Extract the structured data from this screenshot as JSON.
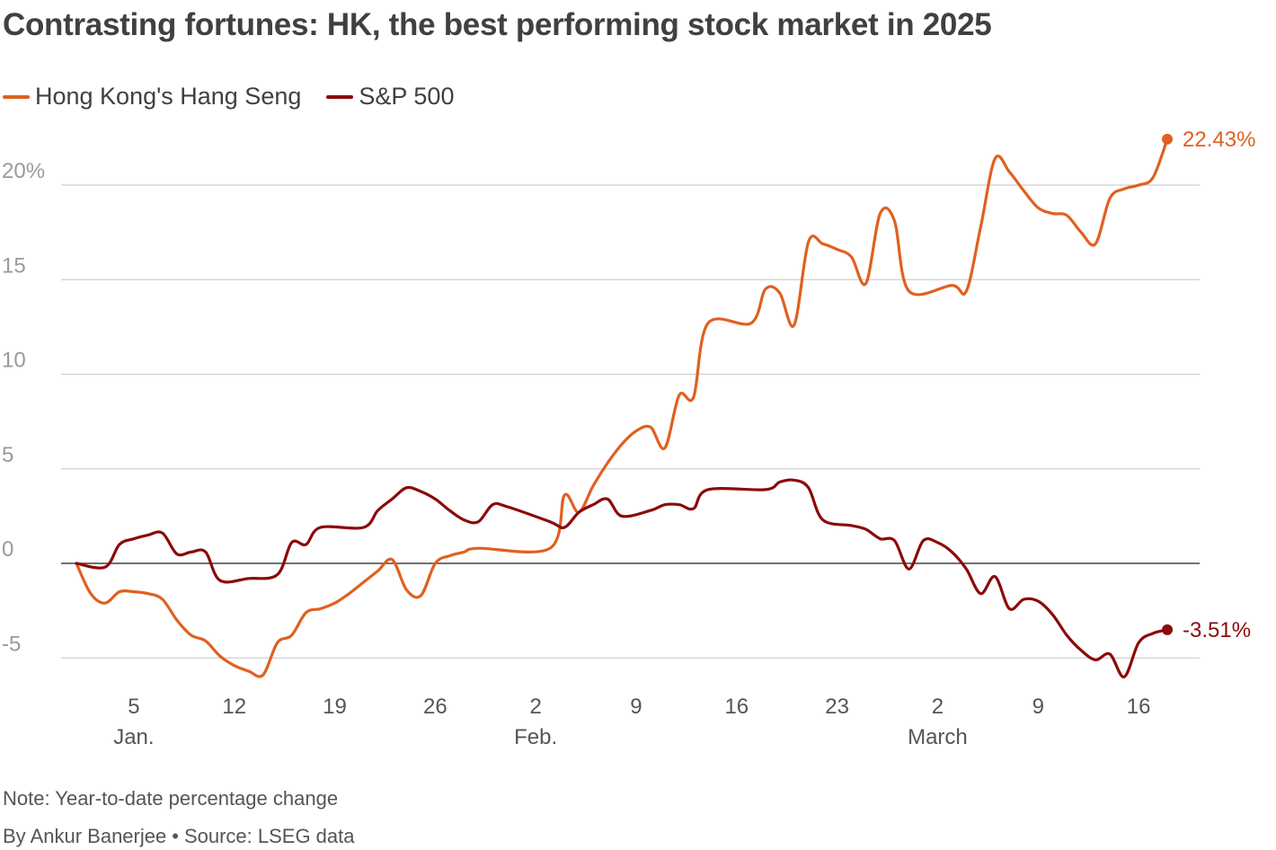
{
  "title": "Contrasting fortunes: HK, the best performing stock market in 2025",
  "note": "Note: Year-to-date percentage change",
  "byline": "By Ankur Banerjee",
  "separator": "•",
  "source": "Source: LSEG data",
  "chart_data": {
    "type": "line",
    "x_unit": "date (2025)",
    "x_range": [
      "2025-01-01",
      "2025-03-19"
    ],
    "ylim": [
      -6.5,
      22.5
    ],
    "grid": true,
    "legend_placement": "top-left",
    "y_ticks": [
      {
        "value": 20,
        "label": "20%"
      },
      {
        "value": 15,
        "label": "15"
      },
      {
        "value": 10,
        "label": "10"
      },
      {
        "value": 5,
        "label": "5"
      },
      {
        "value": 0,
        "label": "0"
      },
      {
        "value": -5,
        "label": "-5"
      }
    ],
    "x_ticks": [
      {
        "date": "2025-01-05",
        "label": "5",
        "month": "Jan."
      },
      {
        "date": "2025-01-12",
        "label": "12"
      },
      {
        "date": "2025-01-19",
        "label": "19"
      },
      {
        "date": "2025-01-26",
        "label": "26"
      },
      {
        "date": "2025-02-02",
        "label": "2",
        "month": "Feb."
      },
      {
        "date": "2025-02-09",
        "label": "9"
      },
      {
        "date": "2025-02-16",
        "label": "16"
      },
      {
        "date": "2025-02-23",
        "label": "23"
      },
      {
        "date": "2025-03-02",
        "label": "2",
        "month": "March"
      },
      {
        "date": "2025-03-09",
        "label": "9"
      },
      {
        "date": "2025-03-16",
        "label": "16"
      }
    ],
    "series": [
      {
        "name": "Hong Kong's Hang Seng",
        "color": "#e06020",
        "end_label": "22.43%",
        "points": [
          [
            "2025-01-01",
            0.0
          ],
          [
            "2025-01-02",
            -1.6
          ],
          [
            "2025-01-03",
            -2.1
          ],
          [
            "2025-01-04",
            -1.5
          ],
          [
            "2025-01-05",
            -1.5
          ],
          [
            "2025-01-06",
            -1.6
          ],
          [
            "2025-01-07",
            -1.9
          ],
          [
            "2025-01-08",
            -3.0
          ],
          [
            "2025-01-09",
            -3.8
          ],
          [
            "2025-01-10",
            -4.1
          ],
          [
            "2025-01-11",
            -4.9
          ],
          [
            "2025-01-12",
            -5.4
          ],
          [
            "2025-01-13",
            -5.7
          ],
          [
            "2025-01-14",
            -5.9
          ],
          [
            "2025-01-15",
            -4.2
          ],
          [
            "2025-01-16",
            -3.8
          ],
          [
            "2025-01-17",
            -2.6
          ],
          [
            "2025-01-18",
            -2.4
          ],
          [
            "2025-01-19",
            -2.1
          ],
          [
            "2025-01-20",
            -1.6
          ],
          [
            "2025-01-21",
            -1.0
          ],
          [
            "2025-01-22",
            -0.4
          ],
          [
            "2025-01-23",
            0.2
          ],
          [
            "2025-01-24",
            -1.4
          ],
          [
            "2025-01-25",
            -1.7
          ],
          [
            "2025-01-26",
            0.0
          ],
          [
            "2025-01-27",
            0.4
          ],
          [
            "2025-01-28",
            0.6
          ],
          [
            "2025-01-29",
            0.8
          ],
          [
            "2025-02-03",
            0.8
          ],
          [
            "2025-02-04",
            3.6
          ],
          [
            "2025-02-05",
            2.7
          ],
          [
            "2025-02-06",
            4.1
          ],
          [
            "2025-02-07",
            5.3
          ],
          [
            "2025-02-08",
            6.3
          ],
          [
            "2025-02-09",
            7.0
          ],
          [
            "2025-02-10",
            7.2
          ],
          [
            "2025-02-11",
            6.1
          ],
          [
            "2025-02-12",
            8.9
          ],
          [
            "2025-02-13",
            8.8
          ],
          [
            "2025-02-14",
            12.7
          ],
          [
            "2025-02-17",
            12.7
          ],
          [
            "2025-02-18",
            14.5
          ],
          [
            "2025-02-19",
            14.3
          ],
          [
            "2025-02-20",
            12.6
          ],
          [
            "2025-02-21",
            17.0
          ],
          [
            "2025-02-22",
            16.9
          ],
          [
            "2025-02-23",
            16.6
          ],
          [
            "2025-02-24",
            16.2
          ],
          [
            "2025-02-25",
            14.8
          ],
          [
            "2025-02-26",
            18.5
          ],
          [
            "2025-02-27",
            18.1
          ],
          [
            "2025-02-28",
            14.4
          ],
          [
            "2025-03-03",
            14.7
          ],
          [
            "2025-03-04",
            14.4
          ],
          [
            "2025-03-05",
            17.8
          ],
          [
            "2025-03-06",
            21.4
          ],
          [
            "2025-03-07",
            20.7
          ],
          [
            "2025-03-08",
            19.7
          ],
          [
            "2025-03-09",
            18.8
          ],
          [
            "2025-03-10",
            18.5
          ],
          [
            "2025-03-11",
            18.4
          ],
          [
            "2025-03-12",
            17.5
          ],
          [
            "2025-03-13",
            16.9
          ],
          [
            "2025-03-14",
            19.3
          ],
          [
            "2025-03-15",
            19.8
          ],
          [
            "2025-03-16",
            20.0
          ],
          [
            "2025-03-17",
            20.4
          ],
          [
            "2025-03-18",
            22.43
          ]
        ]
      },
      {
        "name": "S&P 500",
        "color": "#8b0a0a",
        "end_label": "-3.51%",
        "points": [
          [
            "2025-01-01",
            0.0
          ],
          [
            "2025-01-03",
            -0.2
          ],
          [
            "2025-01-04",
            1.0
          ],
          [
            "2025-01-05",
            1.3
          ],
          [
            "2025-01-06",
            1.5
          ],
          [
            "2025-01-07",
            1.6
          ],
          [
            "2025-01-08",
            0.5
          ],
          [
            "2025-01-09",
            0.6
          ],
          [
            "2025-01-10",
            0.6
          ],
          [
            "2025-01-11",
            -0.9
          ],
          [
            "2025-01-13",
            -0.8
          ],
          [
            "2025-01-15",
            -0.6
          ],
          [
            "2025-01-16",
            1.1
          ],
          [
            "2025-01-17",
            1.0
          ],
          [
            "2025-01-18",
            1.9
          ],
          [
            "2025-01-21",
            1.9
          ],
          [
            "2025-01-22",
            2.8
          ],
          [
            "2025-01-23",
            3.4
          ],
          [
            "2025-01-24",
            4.0
          ],
          [
            "2025-01-25",
            3.8
          ],
          [
            "2025-01-26",
            3.4
          ],
          [
            "2025-01-27",
            2.8
          ],
          [
            "2025-01-28",
            2.3
          ],
          [
            "2025-01-29",
            2.2
          ],
          [
            "2025-01-30",
            3.1
          ],
          [
            "2025-01-31",
            3.0
          ],
          [
            "2025-02-03",
            2.2
          ],
          [
            "2025-02-04",
            1.9
          ],
          [
            "2025-02-05",
            2.7
          ],
          [
            "2025-02-06",
            3.1
          ],
          [
            "2025-02-07",
            3.4
          ],
          [
            "2025-02-08",
            2.5
          ],
          [
            "2025-02-10",
            2.8
          ],
          [
            "2025-02-11",
            3.1
          ],
          [
            "2025-02-12",
            3.1
          ],
          [
            "2025-02-13",
            2.9
          ],
          [
            "2025-02-14",
            3.9
          ],
          [
            "2025-02-18",
            3.9
          ],
          [
            "2025-02-19",
            4.3
          ],
          [
            "2025-02-20",
            4.4
          ],
          [
            "2025-02-21",
            4.0
          ],
          [
            "2025-02-22",
            2.3
          ],
          [
            "2025-02-24",
            2.0
          ],
          [
            "2025-02-25",
            1.8
          ],
          [
            "2025-02-26",
            1.3
          ],
          [
            "2025-02-27",
            1.2
          ],
          [
            "2025-02-28",
            -0.3
          ],
          [
            "2025-03-01",
            1.2
          ],
          [
            "2025-03-02",
            1.1
          ],
          [
            "2025-03-03",
            0.6
          ],
          [
            "2025-03-04",
            -0.3
          ],
          [
            "2025-03-05",
            -1.6
          ],
          [
            "2025-03-06",
            -0.7
          ],
          [
            "2025-03-07",
            -2.4
          ],
          [
            "2025-03-08",
            -1.9
          ],
          [
            "2025-03-09",
            -2.0
          ],
          [
            "2025-03-10",
            -2.7
          ],
          [
            "2025-03-11",
            -3.8
          ],
          [
            "2025-03-12",
            -4.6
          ],
          [
            "2025-03-13",
            -5.1
          ],
          [
            "2025-03-14",
            -4.8
          ],
          [
            "2025-03-15",
            -6.0
          ],
          [
            "2025-03-16",
            -4.2
          ],
          [
            "2025-03-17",
            -3.7
          ],
          [
            "2025-03-18",
            -3.51
          ]
        ]
      }
    ]
  }
}
